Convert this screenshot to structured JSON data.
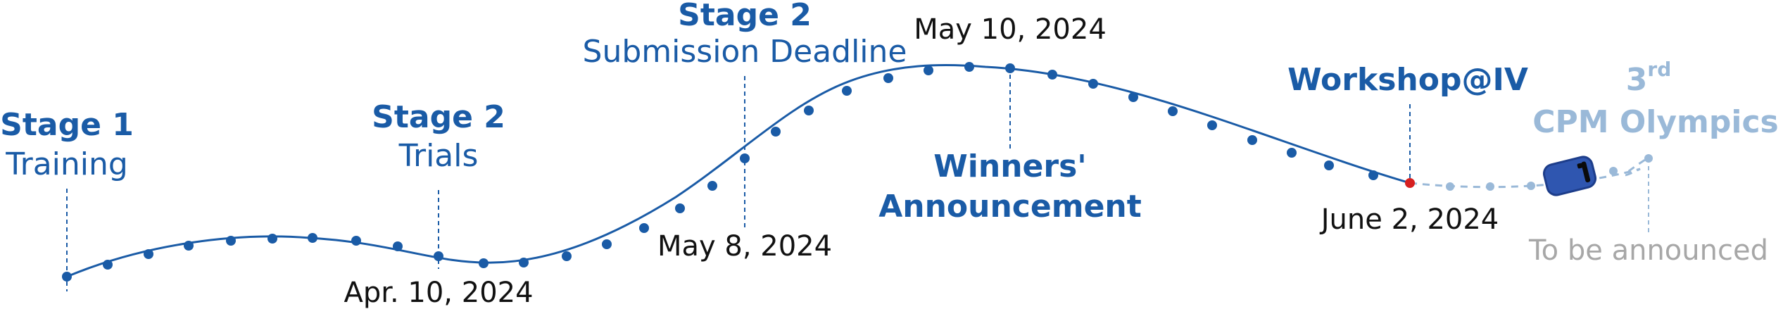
{
  "colors": {
    "primary": "#1a5ba6",
    "faded": "#9ab9d8",
    "highlight": "#d62020",
    "car": "#2f56b0",
    "text": "#111111",
    "muted": "#a7a7a7"
  },
  "milestones": [
    {
      "id": "stage1",
      "title": "Stage 1",
      "subtitle": "Training",
      "date": ""
    },
    {
      "id": "stage2-trials",
      "title": "Stage 2",
      "subtitle": "Trials",
      "date": "Apr. 10, 2024"
    },
    {
      "id": "stage2-deadline",
      "title": "Stage 2",
      "subtitle": "Submission Deadline",
      "date": "May 8, 2024"
    },
    {
      "id": "winners",
      "title_line1": "Winners'",
      "title_line2": "Announcement",
      "date": "May 10, 2024"
    },
    {
      "id": "workshop",
      "title": "Workshop@IV",
      "date": "June 2, 2024"
    },
    {
      "id": "olympics",
      "ordinal": "3",
      "ordinal_suffix": "rd",
      "title": "CPM Olympics",
      "date": "To be announced"
    }
  ],
  "icons": {
    "car": "car-icon"
  }
}
